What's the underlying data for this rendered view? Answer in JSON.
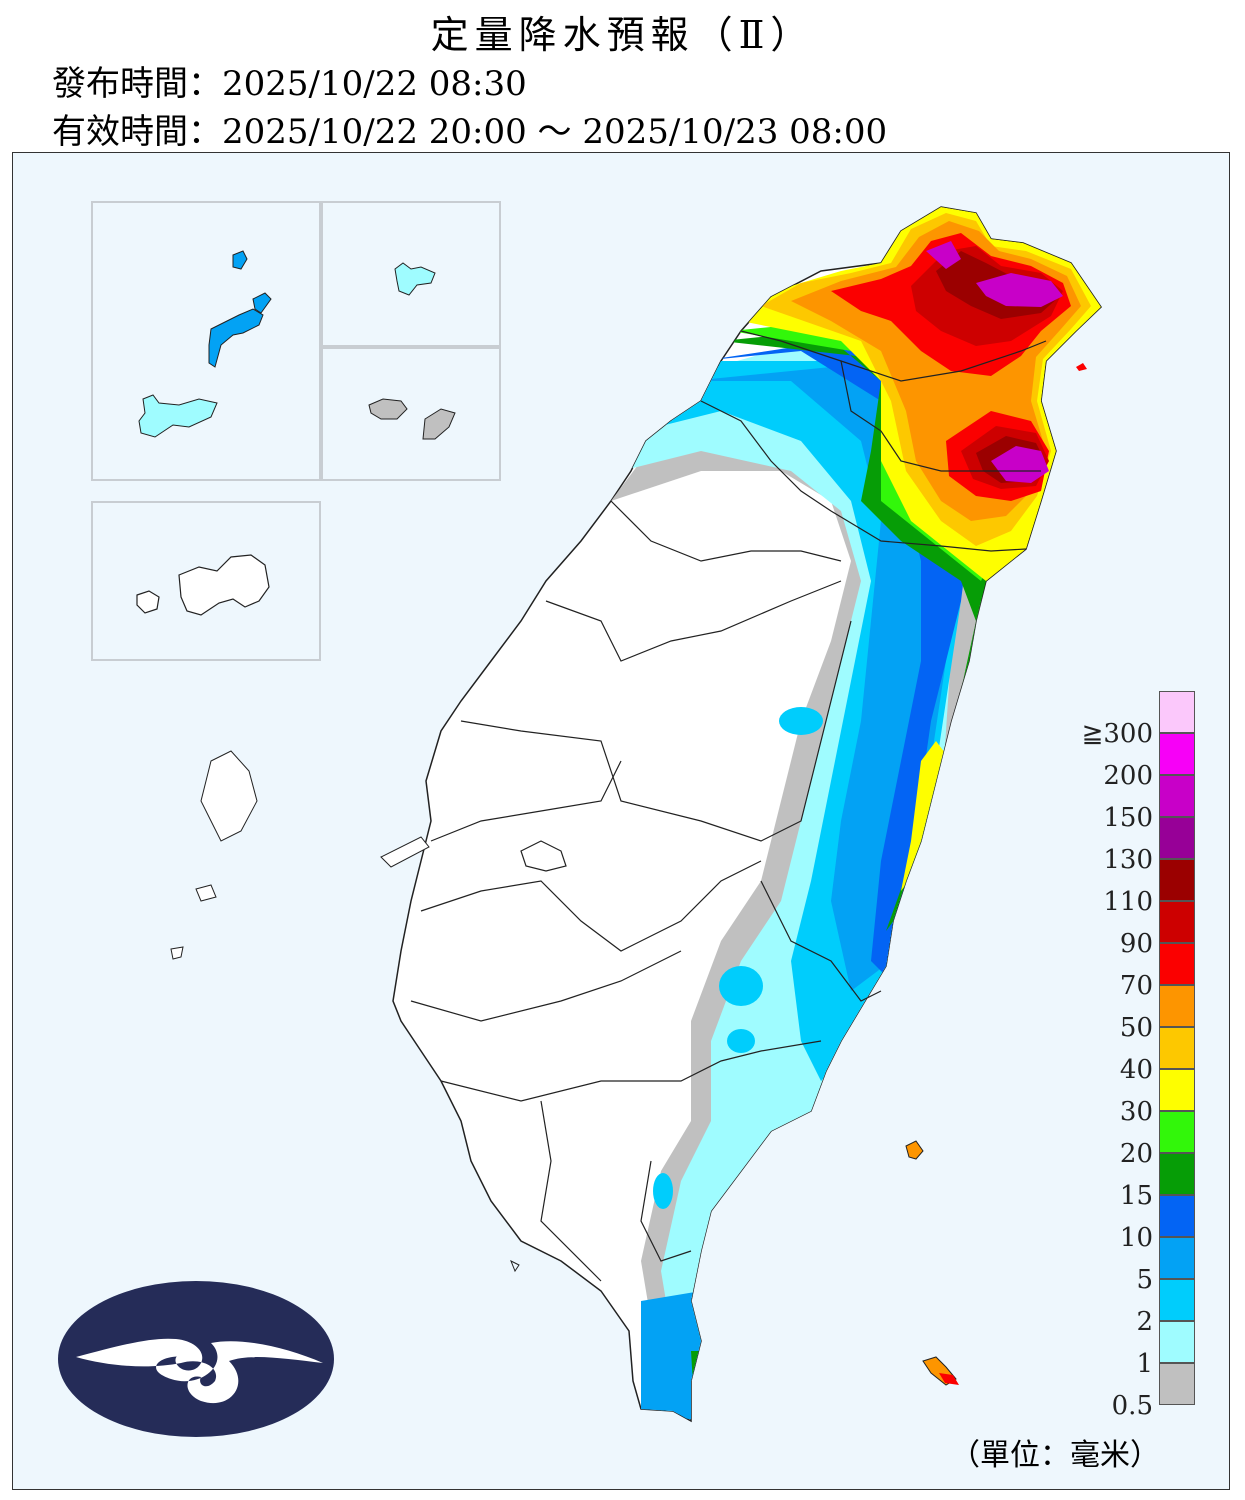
{
  "title": "定量降水預報（Ⅱ）",
  "issue_line": "發布時間：2025/10/22 08:30",
  "valid_line": "有效時間：2025/10/22 20:00 ～ 2025/10/23 08:00",
  "unit_label": "（單位：毫米）",
  "legend": {
    "items": [
      {
        "label": "0.5",
        "color": "#c0c0c0"
      },
      {
        "label": "1",
        "color": "#9ffcff"
      },
      {
        "label": "2",
        "color": "#00cdfc"
      },
      {
        "label": "5",
        "color": "#03a2f4"
      },
      {
        "label": "10",
        "color": "#0364f4"
      },
      {
        "label": "15",
        "color": "#069d06"
      },
      {
        "label": "20",
        "color": "#32f70a"
      },
      {
        "label": "30",
        "color": "#fefe00"
      },
      {
        "label": "40",
        "color": "#fdc800"
      },
      {
        "label": "50",
        "color": "#fd9500"
      },
      {
        "label": "70",
        "color": "#fb0000"
      },
      {
        "label": "90",
        "color": "#cd0000"
      },
      {
        "label": "110",
        "color": "#9b0000"
      },
      {
        "label": "130",
        "color": "#970097"
      },
      {
        "label": "150",
        "color": "#c800c8"
      },
      {
        "label": "200",
        "color": "#f700f7"
      },
      {
        "label": "≧300",
        "color": "#fbc8fb"
      }
    ]
  },
  "colors": {
    "land": "#ffffff",
    "sea": "#eef7fd",
    "logo": "#252c58",
    "border": "#222222"
  }
}
